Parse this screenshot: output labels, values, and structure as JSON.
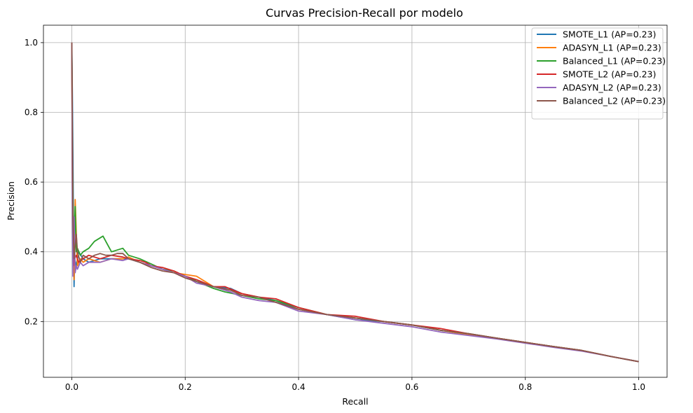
{
  "chart_data": {
    "type": "line",
    "title": "Curvas Precision-Recall por modelo",
    "xlabel": "Recall",
    "ylabel": "Precision",
    "xlim": [
      -0.05,
      1.05
    ],
    "ylim": [
      0.04,
      1.05
    ],
    "xticks": [
      "0.0",
      "0.2",
      "0.4",
      "0.6",
      "0.8",
      "1.0"
    ],
    "yticks": [
      "0.2",
      "0.4",
      "0.6",
      "0.8",
      "1.0"
    ],
    "grid": true,
    "legend_position": "top-right",
    "series": [
      {
        "name": "SMOTE_L1 (AP=0.23)",
        "color": "#1f77b4",
        "x": [
          0.0,
          0.001,
          0.002,
          0.003,
          0.004,
          0.005,
          0.008,
          0.012,
          0.02,
          0.03,
          0.05,
          0.07,
          0.09,
          0.1,
          0.12,
          0.14,
          0.16,
          0.18,
          0.2,
          0.22,
          0.25,
          0.28,
          0.3,
          0.33,
          0.36,
          0.4,
          0.45,
          0.5,
          0.55,
          0.6,
          0.65,
          0.7,
          0.75,
          0.8,
          0.85,
          0.9,
          0.95,
          1.0
        ],
        "y": [
          1.0,
          0.85,
          0.67,
          0.45,
          0.3,
          0.38,
          0.36,
          0.4,
          0.38,
          0.37,
          0.38,
          0.38,
          0.38,
          0.38,
          0.37,
          0.36,
          0.35,
          0.34,
          0.33,
          0.32,
          0.3,
          0.295,
          0.28,
          0.27,
          0.26,
          0.235,
          0.22,
          0.205,
          0.2,
          0.19,
          0.175,
          0.163,
          0.152,
          0.14,
          0.128,
          0.117,
          0.1,
          0.085
        ]
      },
      {
        "name": "ADASYN_L1 (AP=0.23)",
        "color": "#ff7f0e",
        "x": [
          0.0,
          0.001,
          0.002,
          0.004,
          0.006,
          0.01,
          0.015,
          0.02,
          0.03,
          0.05,
          0.07,
          0.09,
          0.1,
          0.12,
          0.14,
          0.16,
          0.18,
          0.2,
          0.22,
          0.25,
          0.28,
          0.3,
          0.33,
          0.36,
          0.4,
          0.45,
          0.5,
          0.55,
          0.6,
          0.65,
          0.7,
          0.75,
          0.8,
          0.85,
          0.9,
          0.95,
          1.0
        ],
        "y": [
          1.0,
          0.6,
          0.4,
          0.32,
          0.55,
          0.36,
          0.38,
          0.37,
          0.38,
          0.37,
          0.38,
          0.38,
          0.385,
          0.37,
          0.36,
          0.35,
          0.34,
          0.335,
          0.33,
          0.3,
          0.29,
          0.28,
          0.27,
          0.255,
          0.235,
          0.22,
          0.21,
          0.2,
          0.19,
          0.175,
          0.162,
          0.152,
          0.14,
          0.128,
          0.117,
          0.1,
          0.085
        ]
      },
      {
        "name": "Balanced_L1 (AP=0.23)",
        "color": "#2ca02c",
        "x": [
          0.0,
          0.001,
          0.002,
          0.004,
          0.006,
          0.008,
          0.01,
          0.015,
          0.02,
          0.03,
          0.04,
          0.05,
          0.055,
          0.06,
          0.07,
          0.08,
          0.09,
          0.1,
          0.12,
          0.14,
          0.16,
          0.18,
          0.2,
          0.22,
          0.25,
          0.27,
          0.3,
          0.33,
          0.36,
          0.4,
          0.45,
          0.5,
          0.55,
          0.6,
          0.65,
          0.7,
          0.75,
          0.8,
          0.85,
          0.9,
          0.95,
          1.0
        ],
        "y": [
          1.0,
          0.7,
          0.55,
          0.42,
          0.53,
          0.4,
          0.41,
          0.39,
          0.4,
          0.41,
          0.43,
          0.44,
          0.445,
          0.43,
          0.4,
          0.405,
          0.41,
          0.39,
          0.38,
          0.365,
          0.35,
          0.345,
          0.33,
          0.315,
          0.295,
          0.285,
          0.275,
          0.265,
          0.26,
          0.24,
          0.22,
          0.21,
          0.2,
          0.19,
          0.175,
          0.165,
          0.152,
          0.14,
          0.128,
          0.117,
          0.1,
          0.085
        ]
      },
      {
        "name": "SMOTE_L2 (AP=0.23)",
        "color": "#d62728",
        "x": [
          0.0,
          0.001,
          0.002,
          0.003,
          0.005,
          0.008,
          0.012,
          0.02,
          0.03,
          0.05,
          0.07,
          0.09,
          0.1,
          0.12,
          0.13,
          0.14,
          0.16,
          0.18,
          0.2,
          0.22,
          0.25,
          0.27,
          0.3,
          0.33,
          0.36,
          0.4,
          0.45,
          0.5,
          0.55,
          0.6,
          0.65,
          0.7,
          0.75,
          0.8,
          0.85,
          0.9,
          0.95,
          1.0
        ],
        "y": [
          1.0,
          0.6,
          0.4,
          0.36,
          0.38,
          0.39,
          0.37,
          0.38,
          0.39,
          0.38,
          0.39,
          0.385,
          0.38,
          0.375,
          0.37,
          0.36,
          0.355,
          0.345,
          0.33,
          0.32,
          0.3,
          0.3,
          0.28,
          0.27,
          0.265,
          0.24,
          0.22,
          0.215,
          0.2,
          0.19,
          0.18,
          0.165,
          0.152,
          0.14,
          0.128,
          0.117,
          0.1,
          0.085
        ]
      },
      {
        "name": "ADASYN_L2 (AP=0.23)",
        "color": "#9467bd",
        "x": [
          0.0,
          0.001,
          0.002,
          0.004,
          0.006,
          0.008,
          0.01,
          0.015,
          0.02,
          0.03,
          0.05,
          0.07,
          0.09,
          0.1,
          0.12,
          0.14,
          0.16,
          0.18,
          0.2,
          0.22,
          0.25,
          0.28,
          0.3,
          0.33,
          0.36,
          0.4,
          0.45,
          0.5,
          0.55,
          0.6,
          0.65,
          0.7,
          0.75,
          0.8,
          0.85,
          0.9,
          0.95,
          1.0
        ],
        "y": [
          1.0,
          0.55,
          0.33,
          0.5,
          0.34,
          0.36,
          0.35,
          0.37,
          0.36,
          0.37,
          0.37,
          0.38,
          0.375,
          0.38,
          0.37,
          0.36,
          0.35,
          0.34,
          0.33,
          0.31,
          0.3,
          0.285,
          0.27,
          0.26,
          0.255,
          0.23,
          0.22,
          0.205,
          0.195,
          0.185,
          0.17,
          0.16,
          0.15,
          0.138,
          0.126,
          0.115,
          0.1,
          0.085
        ]
      },
      {
        "name": "Balanced_L2 (AP=0.23)",
        "color": "#8c564b",
        "x": [
          0.0,
          0.001,
          0.002,
          0.004,
          0.006,
          0.008,
          0.01,
          0.015,
          0.02,
          0.03,
          0.04,
          0.05,
          0.06,
          0.07,
          0.08,
          0.09,
          0.1,
          0.12,
          0.14,
          0.16,
          0.18,
          0.2,
          0.22,
          0.25,
          0.28,
          0.3,
          0.33,
          0.36,
          0.4,
          0.45,
          0.5,
          0.55,
          0.6,
          0.65,
          0.7,
          0.75,
          0.8,
          0.85,
          0.9,
          0.95,
          1.0
        ],
        "y": [
          1.0,
          0.75,
          0.5,
          0.38,
          0.42,
          0.45,
          0.4,
          0.37,
          0.39,
          0.38,
          0.39,
          0.395,
          0.39,
          0.39,
          0.395,
          0.395,
          0.38,
          0.37,
          0.355,
          0.345,
          0.34,
          0.325,
          0.315,
          0.3,
          0.29,
          0.275,
          0.27,
          0.255,
          0.235,
          0.22,
          0.21,
          0.2,
          0.19,
          0.175,
          0.165,
          0.152,
          0.14,
          0.128,
          0.117,
          0.1,
          0.085
        ]
      }
    ]
  }
}
